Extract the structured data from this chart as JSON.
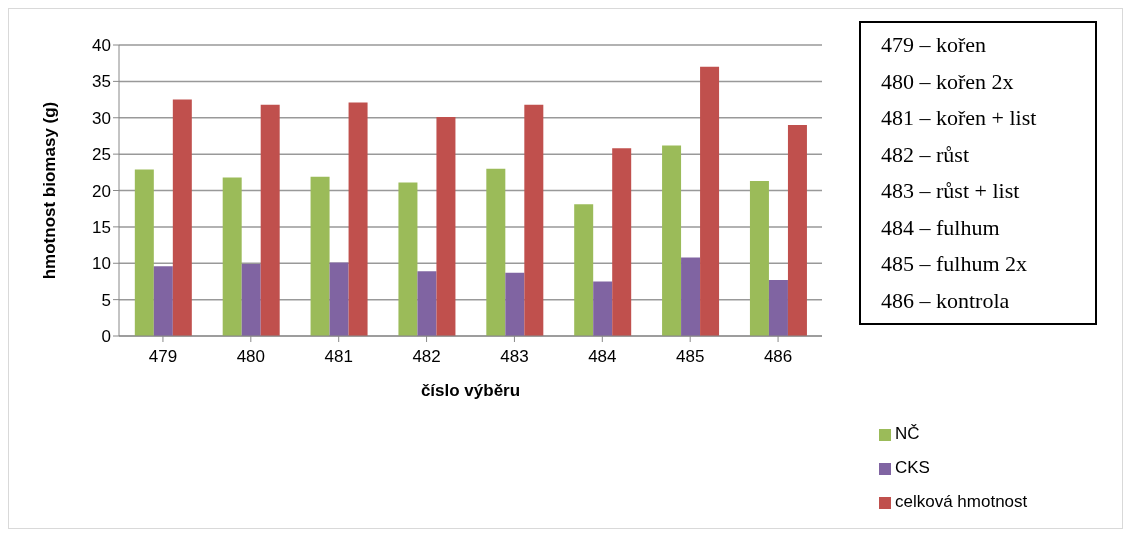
{
  "chart_data": {
    "type": "bar",
    "xlabel": "číslo výběru",
    "ylabel": "hmotnost biomasy (g)",
    "categories": [
      "479",
      "480",
      "481",
      "482",
      "483",
      "484",
      "485",
      "486"
    ],
    "series": [
      {
        "name": "NČ",
        "color": "#9bbb59",
        "values": [
          22.9,
          21.8,
          21.9,
          21.1,
          23.0,
          18.1,
          26.2,
          21.3
        ]
      },
      {
        "name": "CKS",
        "color": "#8064a2",
        "values": [
          9.6,
          9.9,
          10.1,
          8.9,
          8.7,
          7.5,
          10.8,
          7.7
        ]
      },
      {
        "name": "celková hmotnost",
        "color": "#c0504d",
        "values": [
          32.5,
          31.8,
          32.1,
          30.1,
          31.8,
          25.8,
          37.0,
          29.0
        ]
      }
    ],
    "ylim": [
      0,
      40
    ],
    "yticks": [
      0,
      5,
      10,
      15,
      20,
      25,
      30,
      35,
      40
    ],
    "grid": "y",
    "legend": "bottom right",
    "annotations": [
      "479 – kořen",
      "480 – kořen 2x",
      "481 – kořen + list",
      "482 – růst",
      "483 – růst + list",
      "484 – fulhum",
      "485 – fulhum 2x",
      "486 – kontrola"
    ]
  }
}
